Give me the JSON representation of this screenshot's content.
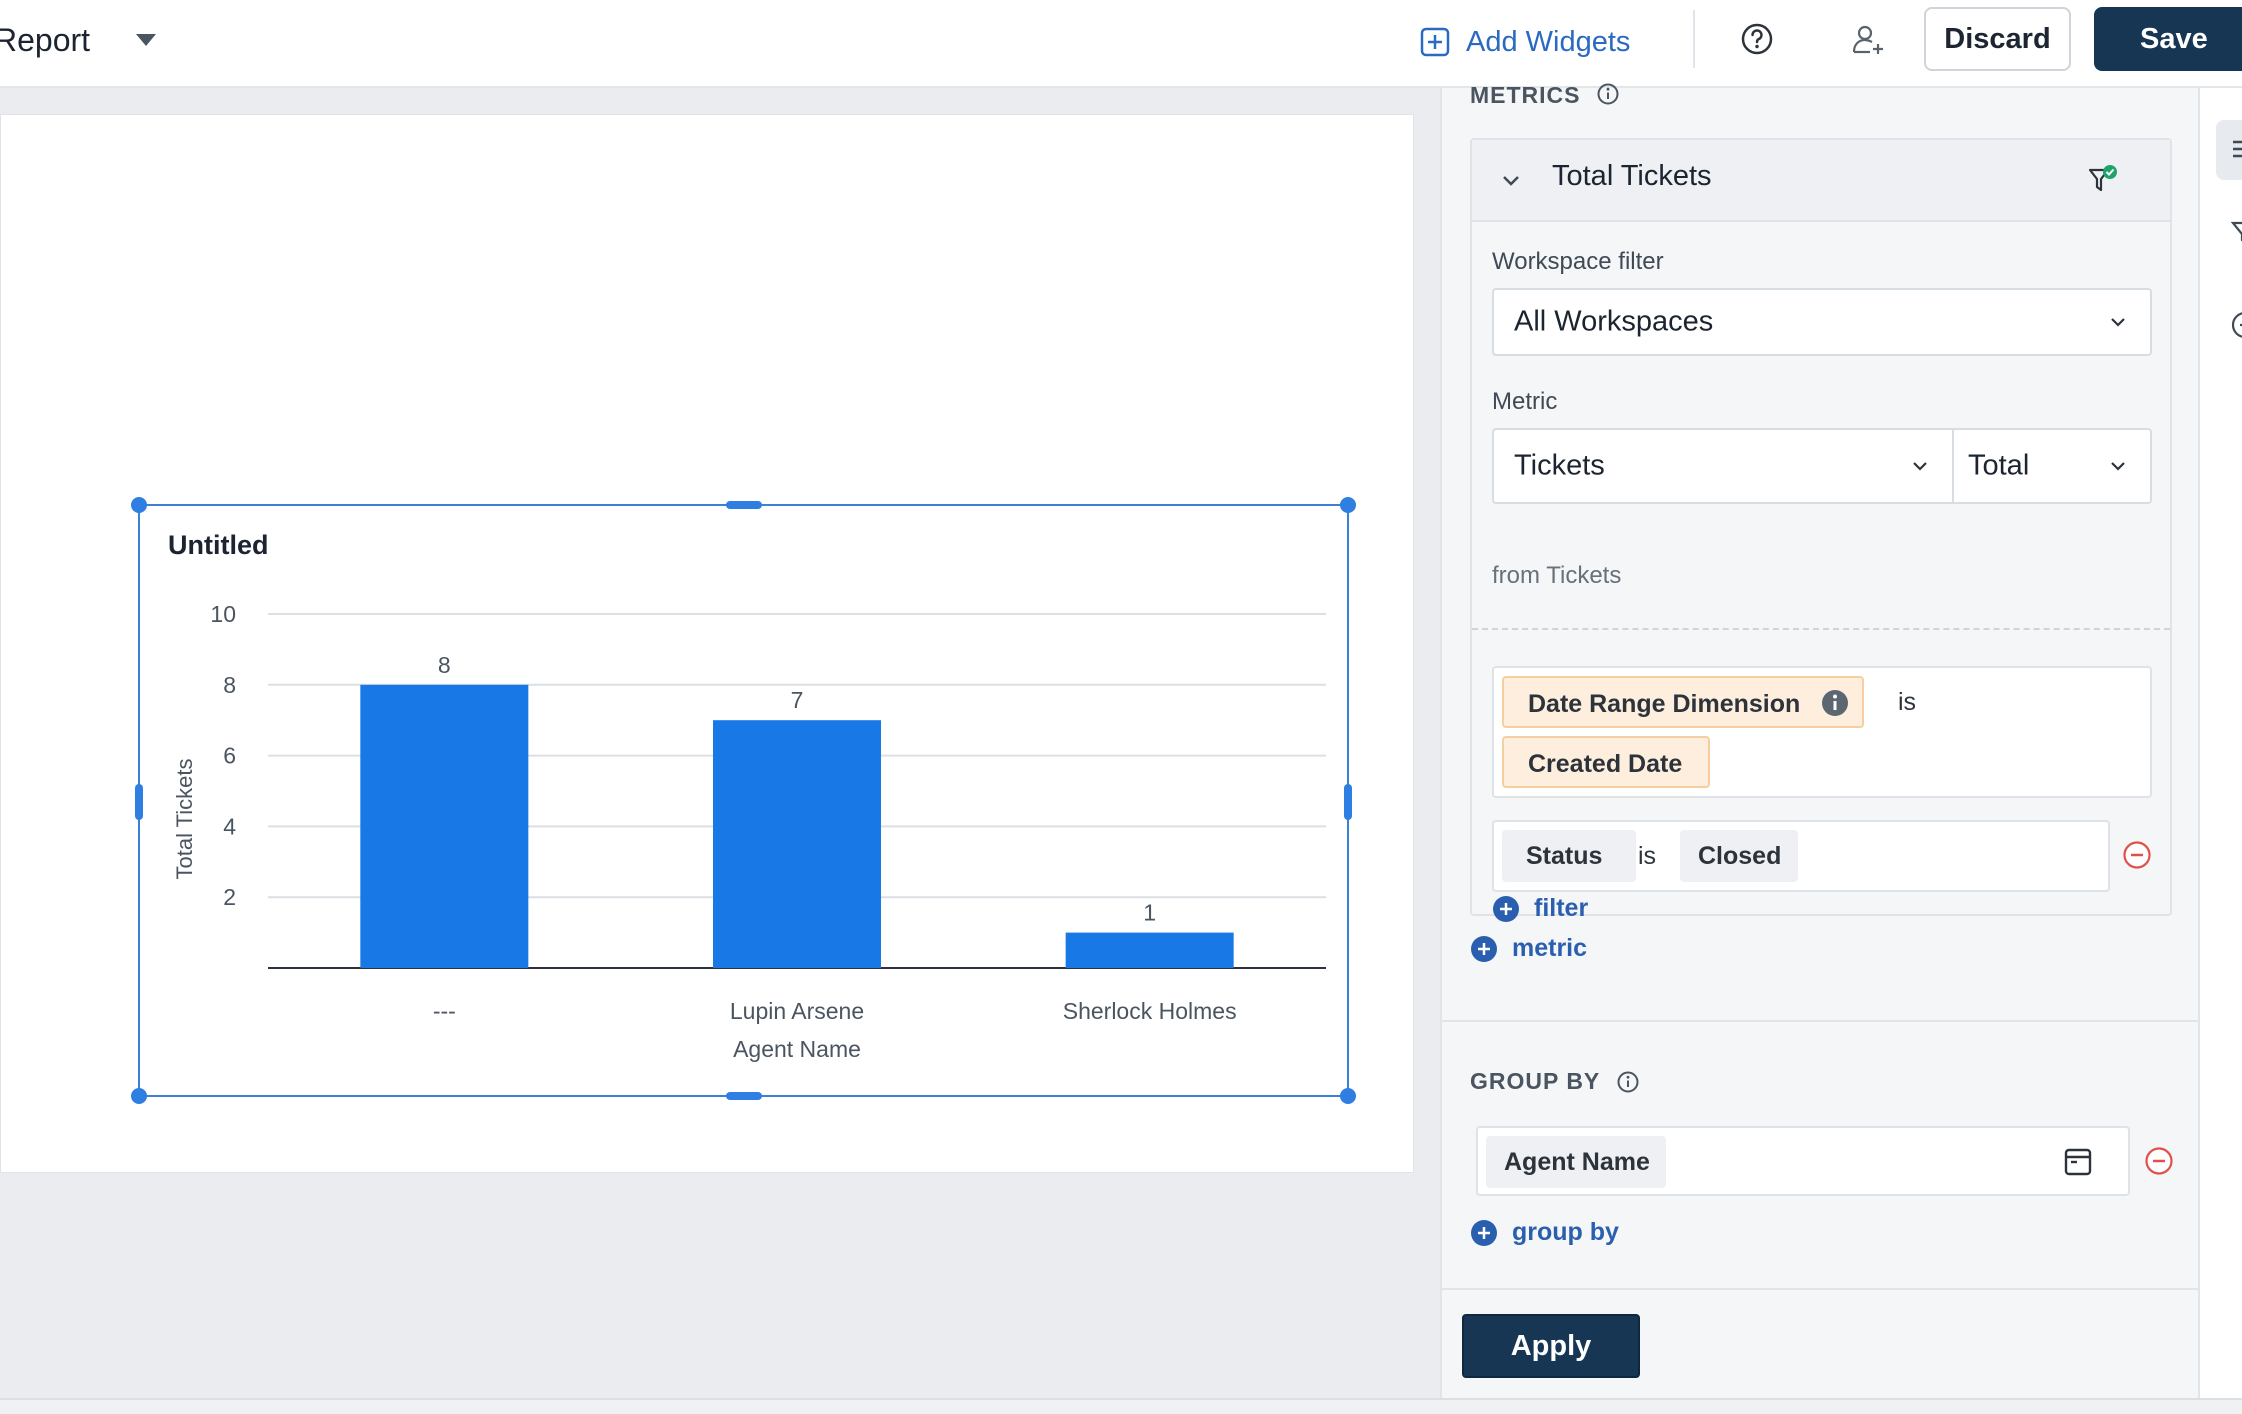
{
  "header": {
    "report_title": "Report",
    "add_widgets_label": "Add Widgets",
    "discard_label": "Discard",
    "save_label": "Save"
  },
  "widget": {
    "title": "Untitled"
  },
  "chart_data": {
    "type": "bar",
    "title": "Untitled",
    "xlabel": "Agent Name",
    "ylabel": "Total Tickets",
    "categories": [
      "---",
      "Lupin Arsene",
      "Sherlock Holmes"
    ],
    "values": [
      8,
      7,
      1
    ],
    "yticks": [
      2,
      4,
      6,
      8,
      10
    ],
    "ylim": [
      0,
      10
    ],
    "grid": true,
    "bar_color": "#1778e6",
    "data_labels": [
      "8",
      "7",
      "1"
    ]
  },
  "panel": {
    "metrics_label": "METRICS",
    "metric": {
      "name": "Total Tickets",
      "workspace_filter_label": "Workspace filter",
      "workspace_filter_value": "All Workspaces",
      "metric_label": "Metric",
      "metric_value": "Tickets",
      "aggregation_value": "Total",
      "from_text": "from Tickets",
      "date_filter": {
        "dimension": "Date Range Dimension",
        "operator": "is",
        "value": "Created Date"
      },
      "status_filter": {
        "field": "Status",
        "operator": "is",
        "value": "Closed"
      },
      "add_filter_label": "filter"
    },
    "add_metric_label": "metric",
    "group_by_label": "GROUP BY",
    "group_by_value": "Agent Name",
    "add_group_by_label": "group by",
    "apply_label": "Apply"
  },
  "colors": {
    "accent": "#2a6ac0",
    "primary_button": "#173654",
    "bar": "#1778e6",
    "chip_orange_bg": "#fdeedd",
    "remove_red": "#e0504a",
    "success_green": "#1fa36b"
  }
}
